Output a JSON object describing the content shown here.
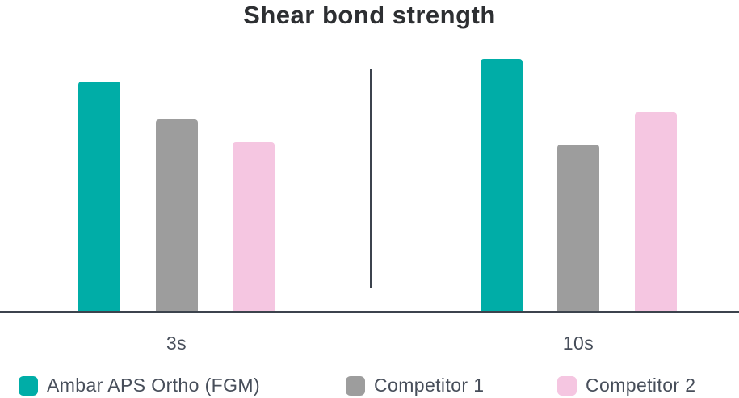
{
  "title": "Shear bond strength",
  "colors": {
    "series_ambar": "#00ADA7",
    "series_competitor1": "#9D9D9D",
    "series_competitor2": "#F5C6E1",
    "axis_line": "#3C434D",
    "title_text": "#2D2F32",
    "label_text": "#474E5A",
    "background": "#FFFFFF"
  },
  "chart_data": {
    "type": "bar",
    "title": "Shear bond strength",
    "categories": [
      "3s",
      "10s"
    ],
    "series": [
      {
        "name": "Ambar APS Ortho (FGM)",
        "color": "#00ADA7",
        "values": [
          91,
          100
        ]
      },
      {
        "name": "Competitor 1",
        "color": "#9D9D9D",
        "values": [
          76,
          66
        ]
      },
      {
        "name": "Competitor 2",
        "color": "#F5C6E1",
        "values": [
          67,
          79
        ]
      }
    ],
    "xlabel": "",
    "ylabel": "",
    "ylim": [
      0,
      100
    ],
    "units": "relative height, no value axis shown in figure",
    "grid": false,
    "value_axis_visible": false,
    "legend_position": "bottom"
  },
  "legend": {
    "items": [
      {
        "label": "Ambar APS Ortho (FGM)",
        "color": "#00ADA7"
      },
      {
        "label": "Competitor 1",
        "color": "#9D9D9D"
      },
      {
        "label": "Competitor 2",
        "color": "#F5C6E1"
      }
    ]
  }
}
